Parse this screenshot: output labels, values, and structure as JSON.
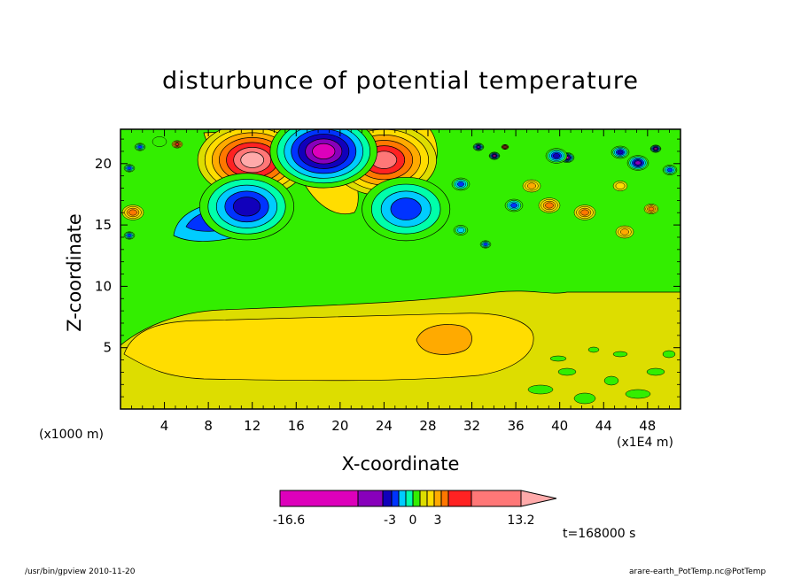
{
  "chart_data": {
    "type": "heatmap",
    "title": "disturbunce of potential temperature",
    "xlabel": "X-coordinate",
    "ylabel": "Z-coordinate",
    "x_unit_left": "(x1000 m)",
    "x_unit_right": "(x1E4 m)",
    "xlim": [
      0,
      51
    ],
    "ylim": [
      0,
      22.8
    ],
    "xticks": [
      "4",
      "8",
      "12",
      "16",
      "20",
      "24",
      "28",
      "32",
      "36",
      "40",
      "44",
      "48"
    ],
    "yticks": [
      "5",
      "10",
      "15",
      "20"
    ],
    "colorbar": {
      "min_label": "-16.6",
      "max_label": "13.2",
      "tick_labels": [
        "-3",
        "0",
        "3"
      ],
      "colors": [
        "#dd00bb",
        "#8800bb",
        "#1100bb",
        "#0033ff",
        "#00ccff",
        "#00ffaa",
        "#33ee00",
        "#dddd00",
        "#ffdd00",
        "#ffaa00",
        "#ff7700",
        "#ff2222",
        "#ff7777",
        "#ffaaaa"
      ]
    },
    "features": [
      {
        "name": "positive maximum",
        "x": 12,
        "y": 20.3,
        "level": 13
      },
      {
        "name": "positive maximum",
        "x": 24,
        "y": 20.3,
        "level": 11
      },
      {
        "name": "negative minimum",
        "x": 18.5,
        "y": 21,
        "level": -12
      },
      {
        "name": "negative minimum",
        "x": 11.5,
        "y": 16.5,
        "level": -6
      },
      {
        "name": "negative minimum",
        "x": 26,
        "y": 16.3,
        "level": -3
      },
      {
        "name": "positive lobe",
        "x": 29.5,
        "y": 5.8,
        "level": 3
      },
      {
        "name": "positive band",
        "x": 18,
        "y": 6.3,
        "level": 2
      },
      {
        "name": "positive band",
        "x": 18,
        "y": 8.5,
        "level": 1
      }
    ]
  },
  "time_label": "t=168000 s",
  "footer_left": "/usr/bin/gpview 2010-11-20",
  "footer_right": "arare-earth_PotTemp.nc@PotTemp"
}
